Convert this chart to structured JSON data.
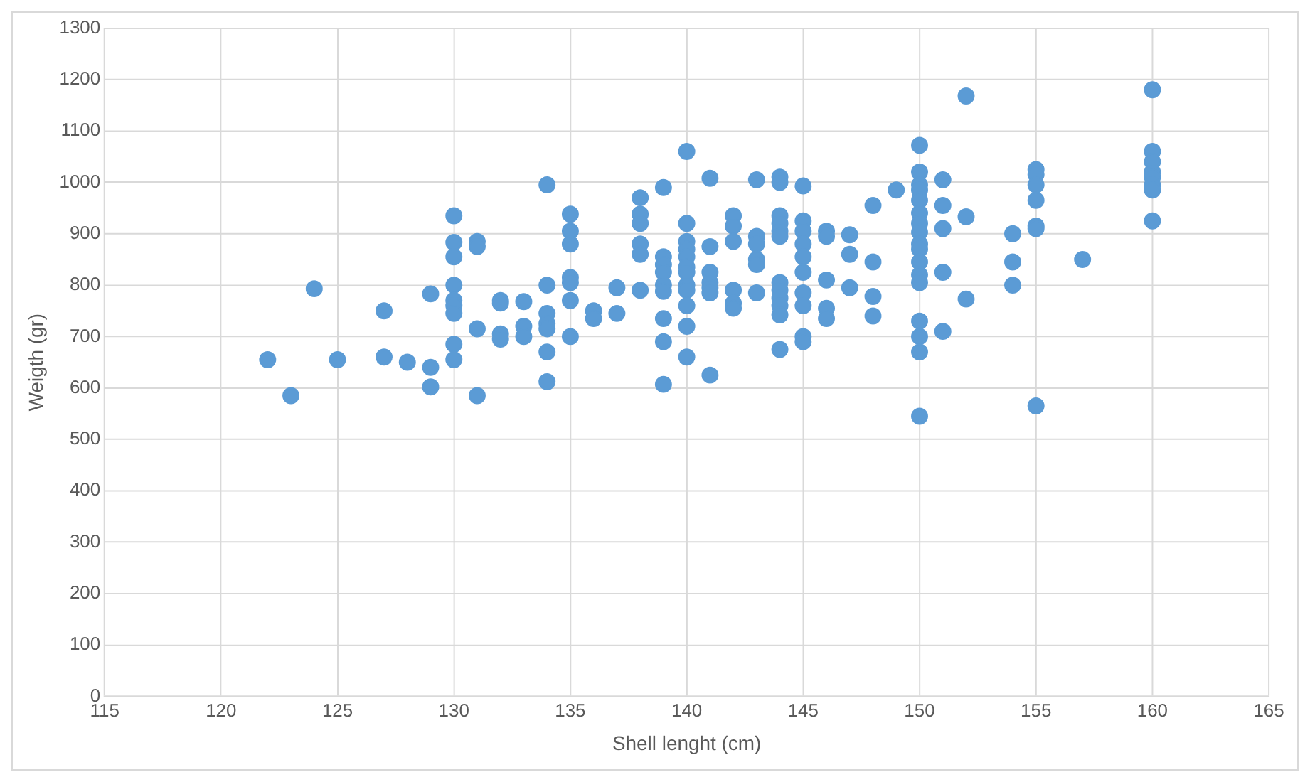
{
  "chart_data": {
    "type": "scatter",
    "xlabel": "Shell lenght (cm)",
    "ylabel": "Weigth (gr)",
    "x": [
      122,
      123,
      124,
      125,
      127,
      127,
      128,
      129,
      129,
      129,
      130,
      130,
      130,
      130,
      130,
      130,
      130,
      130,
      130,
      131,
      131,
      131,
      131,
      132,
      132,
      132,
      132,
      133,
      133,
      133,
      134,
      134,
      134,
      134,
      134,
      134,
      134,
      135,
      135,
      135,
      135,
      135,
      135,
      135,
      136,
      136,
      137,
      137,
      138,
      138,
      138,
      138,
      138,
      138,
      139,
      139,
      139,
      139,
      139,
      139,
      139,
      139,
      139,
      140,
      140,
      140,
      140,
      140,
      140,
      140,
      140,
      140,
      140,
      140,
      140,
      141,
      141,
      141,
      141,
      141,
      141,
      141,
      142,
      142,
      142,
      142,
      142,
      142,
      143,
      143,
      143,
      143,
      143,
      143,
      144,
      144,
      144,
      144,
      144,
      144,
      144,
      144,
      144,
      144,
      144,
      144,
      145,
      145,
      145,
      145,
      145,
      145,
      145,
      145,
      145,
      145,
      146,
      146,
      146,
      146,
      146,
      147,
      147,
      147,
      148,
      148,
      148,
      148,
      149,
      150,
      150,
      150,
      150,
      150,
      150,
      150,
      150,
      150,
      150,
      150,
      150,
      150,
      150,
      150,
      150,
      150,
      151,
      151,
      151,
      151,
      151,
      152,
      152,
      152,
      154,
      154,
      154,
      155,
      155,
      155,
      155,
      155,
      155,
      155,
      157,
      160,
      160,
      160,
      160,
      160,
      160,
      160,
      160
    ],
    "values": [
      655,
      585,
      793,
      655,
      750,
      660,
      650,
      783,
      640,
      602,
      935,
      883,
      855,
      800,
      770,
      760,
      745,
      685,
      655,
      885,
      875,
      715,
      585,
      770,
      765,
      705,
      695,
      768,
      720,
      700,
      995,
      800,
      745,
      725,
      715,
      670,
      612,
      938,
      905,
      880,
      815,
      805,
      770,
      700,
      750,
      735,
      795,
      745,
      970,
      938,
      920,
      880,
      860,
      790,
      990,
      855,
      840,
      825,
      800,
      788,
      735,
      690,
      607,
      1060,
      920,
      885,
      870,
      855,
      835,
      825,
      800,
      790,
      760,
      720,
      660,
      1008,
      875,
      825,
      805,
      795,
      785,
      625,
      935,
      915,
      885,
      790,
      765,
      755,
      1005,
      895,
      880,
      850,
      840,
      785,
      1010,
      1000,
      935,
      920,
      905,
      895,
      805,
      790,
      775,
      760,
      742,
      675,
      993,
      925,
      905,
      880,
      855,
      825,
      785,
      760,
      700,
      690,
      905,
      895,
      810,
      755,
      735,
      898,
      860,
      795,
      955,
      845,
      778,
      740,
      985,
      1072,
      1020,
      995,
      985,
      965,
      940,
      920,
      903,
      880,
      870,
      845,
      820,
      805,
      730,
      700,
      670,
      545,
      1005,
      955,
      910,
      825,
      710,
      1168,
      933,
      773,
      900,
      845,
      800,
      1025,
      1015,
      995,
      965,
      915,
      910,
      565,
      850,
      1180,
      1060,
      1040,
      1020,
      1010,
      995,
      985,
      925
    ],
    "color": "#5b9bd5",
    "marker": "circle",
    "xlim": [
      115,
      165
    ],
    "xticks": [
      115,
      120,
      125,
      130,
      135,
      140,
      145,
      150,
      155,
      160,
      165
    ],
    "ylim": [
      0,
      1300
    ],
    "yticks": [
      0,
      100,
      200,
      300,
      400,
      500,
      600,
      700,
      800,
      900,
      1000,
      1100,
      1200,
      1300
    ],
    "grid": true,
    "legend": false
  }
}
